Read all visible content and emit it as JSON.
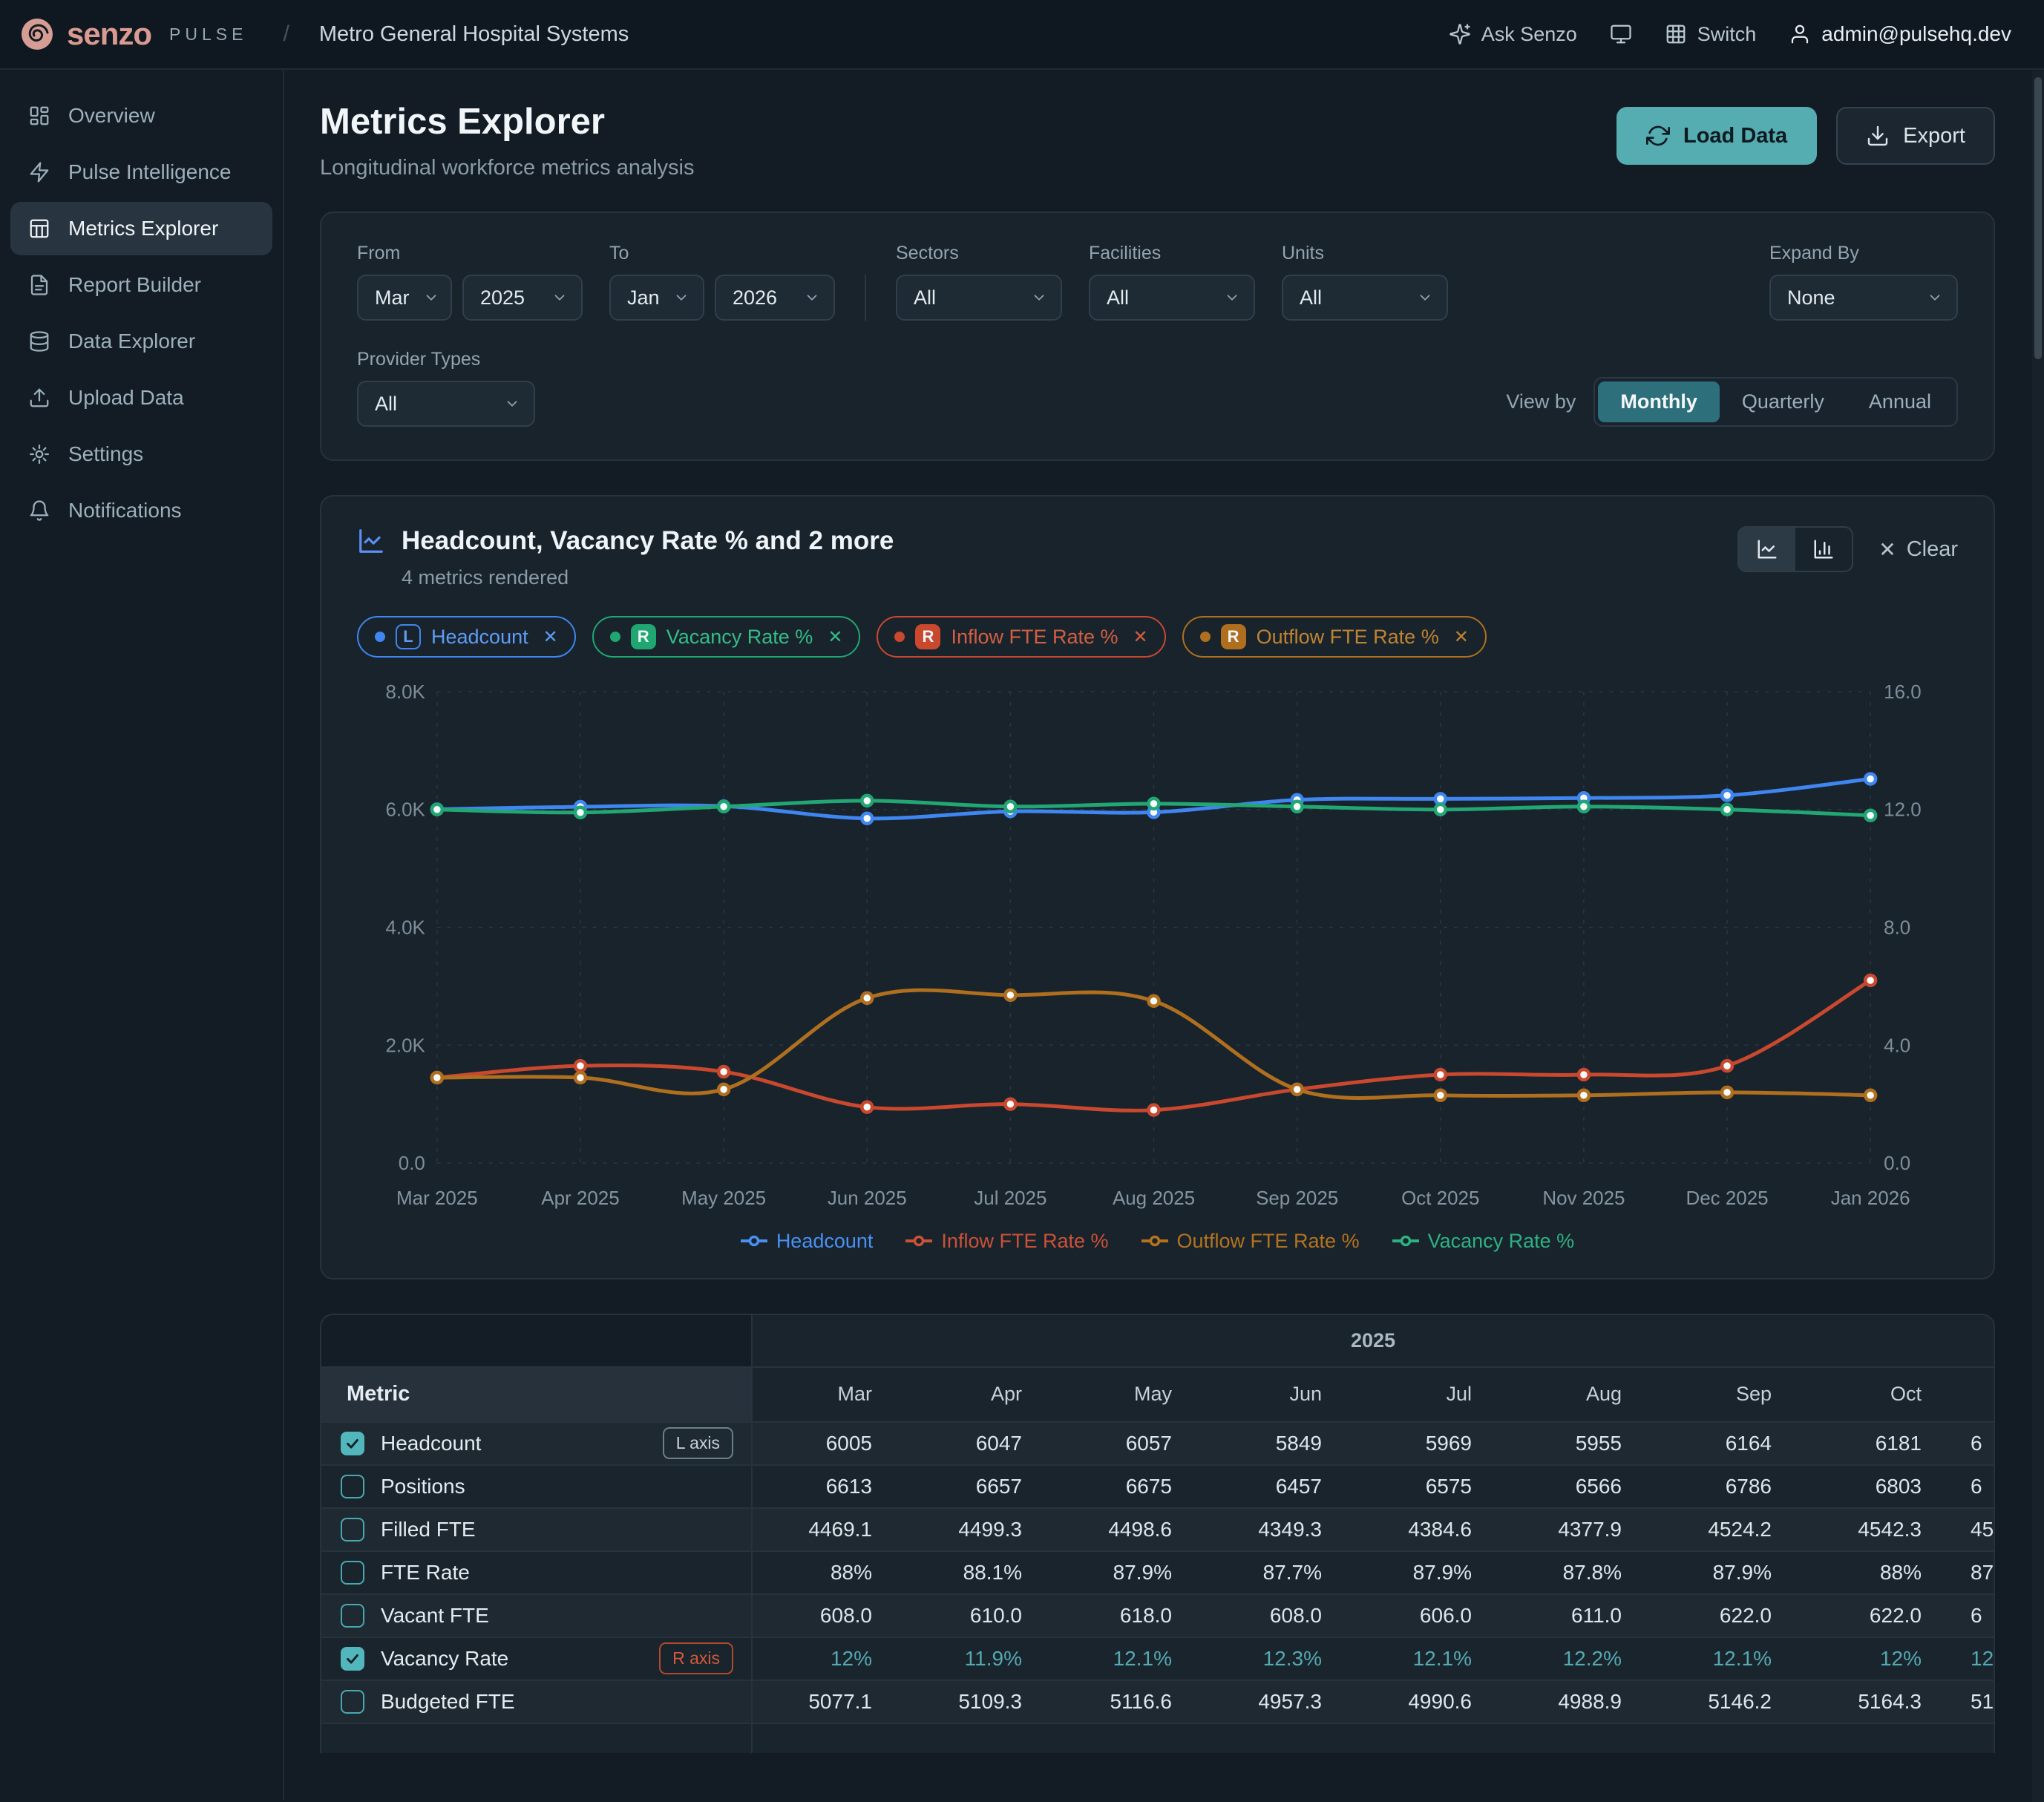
{
  "header": {
    "brand": "senzo",
    "brand_suffix": "PULSE",
    "breadcrumb_separator": "/",
    "org": "Metro General Hospital Systems",
    "ask_label": "Ask Senzo",
    "switch_label": "Switch",
    "account": "admin@pulsehq.dev"
  },
  "sidebar": {
    "items": [
      {
        "label": "Overview",
        "icon": "layout-dashboard-icon",
        "active": false
      },
      {
        "label": "Pulse Intelligence",
        "icon": "zap-icon",
        "active": false
      },
      {
        "label": "Metrics Explorer",
        "icon": "table-icon",
        "active": true
      },
      {
        "label": "Report Builder",
        "icon": "file-text-icon",
        "active": false
      },
      {
        "label": "Data Explorer",
        "icon": "database-icon",
        "active": false
      },
      {
        "label": "Upload Data",
        "icon": "upload-icon",
        "active": false
      },
      {
        "label": "Settings",
        "icon": "gear-icon",
        "active": false
      },
      {
        "label": "Notifications",
        "icon": "bell-icon",
        "active": false
      }
    ]
  },
  "page": {
    "title": "Metrics Explorer",
    "subtitle": "Longitudinal workforce metrics analysis",
    "load_data_label": "Load Data",
    "export_label": "Export"
  },
  "filters": {
    "from_label": "From",
    "from_month": "Mar",
    "from_year": "2025",
    "to_label": "To",
    "to_month": "Jan",
    "to_year": "2026",
    "sectors_label": "Sectors",
    "sectors_value": "All",
    "facilities_label": "Facilities",
    "facilities_value": "All",
    "units_label": "Units",
    "units_value": "All",
    "expand_label": "Expand By",
    "expand_value": "None",
    "provider_label": "Provider Types",
    "provider_value": "All",
    "view_by_label": "View by",
    "view_options": [
      "Monthly",
      "Quarterly",
      "Annual"
    ],
    "view_selected": "Monthly"
  },
  "chart_panel": {
    "title": "Headcount, Vacancy Rate % and 2 more",
    "subtitle": "4 metrics rendered",
    "clear_label": "Clear",
    "chips": [
      {
        "label": "Headcount",
        "axis": "L",
        "color": "#3f86f0",
        "text_color": "#5f9cf5",
        "badge_filled": false
      },
      {
        "label": "Vacancy Rate %",
        "axis": "R",
        "color": "#1fa771",
        "text_color": "#35bd87",
        "badge_filled": true
      },
      {
        "label": "Inflow FTE Rate %",
        "axis": "R",
        "color": "#c9482e",
        "text_color": "#d45f42",
        "badge_filled": true
      },
      {
        "label": "Outflow FTE Rate %",
        "axis": "R",
        "color": "#b06f1e",
        "text_color": "#c08332",
        "badge_filled": true
      }
    ],
    "legend": [
      {
        "label": "Headcount",
        "color": "#4a90f2"
      },
      {
        "label": "Inflow FTE Rate %",
        "color": "#cc5136"
      },
      {
        "label": "Outflow FTE Rate %",
        "color": "#b5731f"
      },
      {
        "label": "Vacancy Rate %",
        "color": "#2eb182"
      }
    ]
  },
  "chart_data": {
    "type": "line",
    "x": [
      "Mar 2025",
      "Apr 2025",
      "May 2025",
      "Jun 2025",
      "Jul 2025",
      "Aug 2025",
      "Sep 2025",
      "Oct 2025",
      "Nov 2025",
      "Dec 2025",
      "Jan 2026"
    ],
    "left_axis": {
      "range": [
        0,
        8000
      ],
      "tick_values": [
        0,
        2000,
        4000,
        6000,
        8000
      ],
      "tick_labels": [
        "0.0",
        "2.0K",
        "4.0K",
        "6.0K",
        "8.0K"
      ]
    },
    "right_axis": {
      "range": [
        0,
        16
      ],
      "tick_values": [
        0,
        4,
        8,
        12,
        16
      ],
      "tick_labels": [
        "0.0",
        "4.0",
        "8.0",
        "12.0",
        "16.0"
      ]
    },
    "grid": true,
    "legend_position": "bottom",
    "series": [
      {
        "name": "Headcount",
        "axis": "left",
        "color": "#3f86f0",
        "values": [
          6005,
          6047,
          6057,
          5849,
          5969,
          5955,
          6164,
          6181,
          6195,
          6240,
          6520
        ]
      },
      {
        "name": "Inflow FTE Rate %",
        "axis": "right",
        "color": "#c9482e",
        "values": [
          2.9,
          3.3,
          3.1,
          1.9,
          2.0,
          1.8,
          2.5,
          3.0,
          3.0,
          3.3,
          6.2
        ]
      },
      {
        "name": "Outflow FTE Rate %",
        "axis": "right",
        "color": "#b06f1e",
        "values": [
          2.9,
          2.9,
          2.5,
          5.6,
          5.7,
          5.5,
          2.5,
          2.3,
          2.3,
          2.4,
          2.3
        ]
      },
      {
        "name": "Vacancy Rate %",
        "axis": "right",
        "color": "#22a674",
        "values": [
          12,
          11.9,
          12.1,
          12.3,
          12.1,
          12.2,
          12.1,
          12,
          12.1,
          12,
          11.8
        ]
      }
    ]
  },
  "table": {
    "year_header": "2025",
    "metric_header": "Metric",
    "months": [
      "Mar",
      "Apr",
      "May",
      "Jun",
      "Jul",
      "Aug",
      "Sep",
      "Oct"
    ],
    "rows": [
      {
        "label": "Headcount",
        "checked": true,
        "axis_badge": "L axis",
        "badge_type": "l",
        "highlight": false,
        "values": [
          "6005",
          "6047",
          "6057",
          "5849",
          "5969",
          "5955",
          "6164",
          "6181"
        ],
        "clipped": "6"
      },
      {
        "label": "Positions",
        "checked": false,
        "axis_badge": "",
        "badge_type": "",
        "highlight": false,
        "values": [
          "6613",
          "6657",
          "6675",
          "6457",
          "6575",
          "6566",
          "6786",
          "6803"
        ],
        "clipped": "6"
      },
      {
        "label": "Filled FTE",
        "checked": false,
        "axis_badge": "",
        "badge_type": "",
        "highlight": false,
        "values": [
          "4469.1",
          "4499.3",
          "4498.6",
          "4349.3",
          "4384.6",
          "4377.9",
          "4524.2",
          "4542.3"
        ],
        "clipped": "45"
      },
      {
        "label": "FTE Rate",
        "checked": false,
        "axis_badge": "",
        "badge_type": "",
        "highlight": false,
        "values": [
          "88%",
          "88.1%",
          "87.9%",
          "87.7%",
          "87.9%",
          "87.8%",
          "87.9%",
          "88%"
        ],
        "clipped": "87"
      },
      {
        "label": "Vacant FTE",
        "checked": false,
        "axis_badge": "",
        "badge_type": "",
        "highlight": false,
        "values": [
          "608.0",
          "610.0",
          "618.0",
          "608.0",
          "606.0",
          "611.0",
          "622.0",
          "622.0"
        ],
        "clipped": "6"
      },
      {
        "label": "Vacancy Rate",
        "checked": true,
        "axis_badge": "R axis",
        "badge_type": "r",
        "highlight": true,
        "values": [
          "12%",
          "11.9%",
          "12.1%",
          "12.3%",
          "12.1%",
          "12.2%",
          "12.1%",
          "12%"
        ],
        "clipped": "12"
      },
      {
        "label": "Budgeted FTE",
        "checked": false,
        "axis_badge": "",
        "badge_type": "",
        "highlight": false,
        "values": [
          "5077.1",
          "5109.3",
          "5116.6",
          "4957.3",
          "4990.6",
          "4988.9",
          "5146.2",
          "5164.3"
        ],
        "clipped": "51"
      }
    ]
  },
  "colors": {
    "accent_teal": "#55acb1",
    "accent_teal_dark": "#2e6f7c",
    "brand_salmon": "#d99a92",
    "vacancy_value": "#54a9b2",
    "r_axis_badge": "#c4502e",
    "headcount_blue": "#3f86f0",
    "vacancy_green": "#22a674",
    "inflow_red": "#c9482e",
    "outflow_amber": "#b06f1e"
  }
}
